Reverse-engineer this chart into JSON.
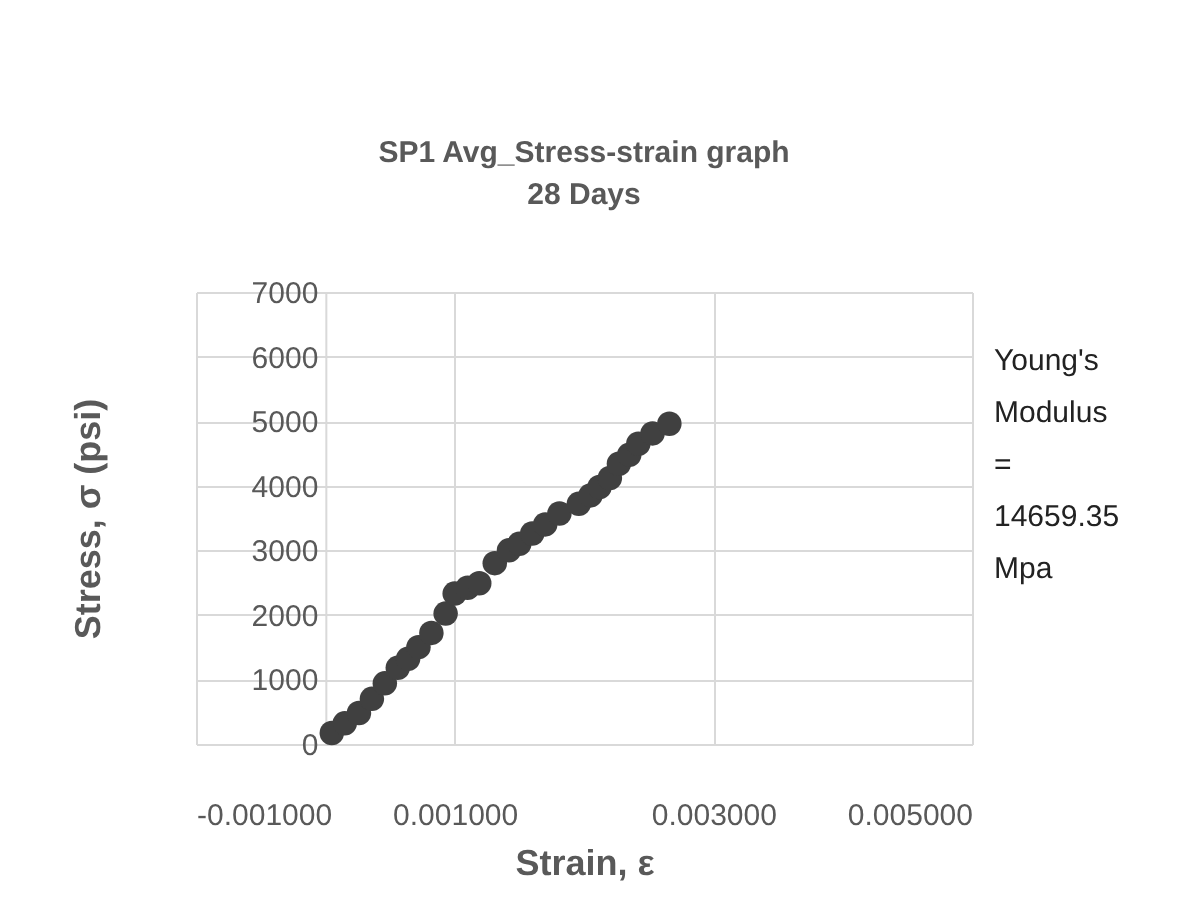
{
  "chart_data": {
    "type": "scatter",
    "title": "SP1 Avg_Stress-strain graph",
    "subtitle": "28 Days",
    "xlabel": "Strain, ε",
    "ylabel": "Stress, σ (psi)",
    "annotations": [
      "Young's Modulus = 14659.35 Mpa"
    ],
    "x": [
      5e-05,
      0.00015,
      0.00026,
      0.00036,
      0.00046,
      0.00056,
      0.00064,
      0.00072,
      0.00082,
      0.00093,
      0.001,
      0.0011,
      0.00119,
      0.00131,
      0.00142,
      0.0015,
      0.0016,
      0.0017,
      0.00181,
      0.00196,
      0.00205,
      0.00212,
      0.0022,
      0.00227,
      0.00235,
      0.00242,
      0.00253,
      0.00266
    ],
    "series": [
      {
        "color": "#404040",
        "values": [
          170,
          320,
          480,
          700,
          940,
          1180,
          1320,
          1500,
          1720,
          2020,
          2330,
          2420,
          2490,
          2800,
          3000,
          3100,
          3260,
          3400,
          3570,
          3720,
          3850,
          3980,
          4120,
          4340,
          4480,
          4650,
          4810,
          4960
        ]
      }
    ],
    "xlim": [
      -0.001,
      0.005
    ],
    "xticks": [
      {
        "value": -0.001,
        "label": "-0.001000"
      },
      {
        "value": 0.001,
        "label": "0.001000"
      },
      {
        "value": 0.003,
        "label": "0.003000"
      },
      {
        "value": 0.005,
        "label": "0.005000"
      }
    ],
    "ylim": [
      0,
      7000
    ],
    "yticks": [
      0,
      1000,
      2000,
      3000,
      4000,
      5000,
      6000,
      7000
    ],
    "grid": true,
    "marker": "circle"
  }
}
